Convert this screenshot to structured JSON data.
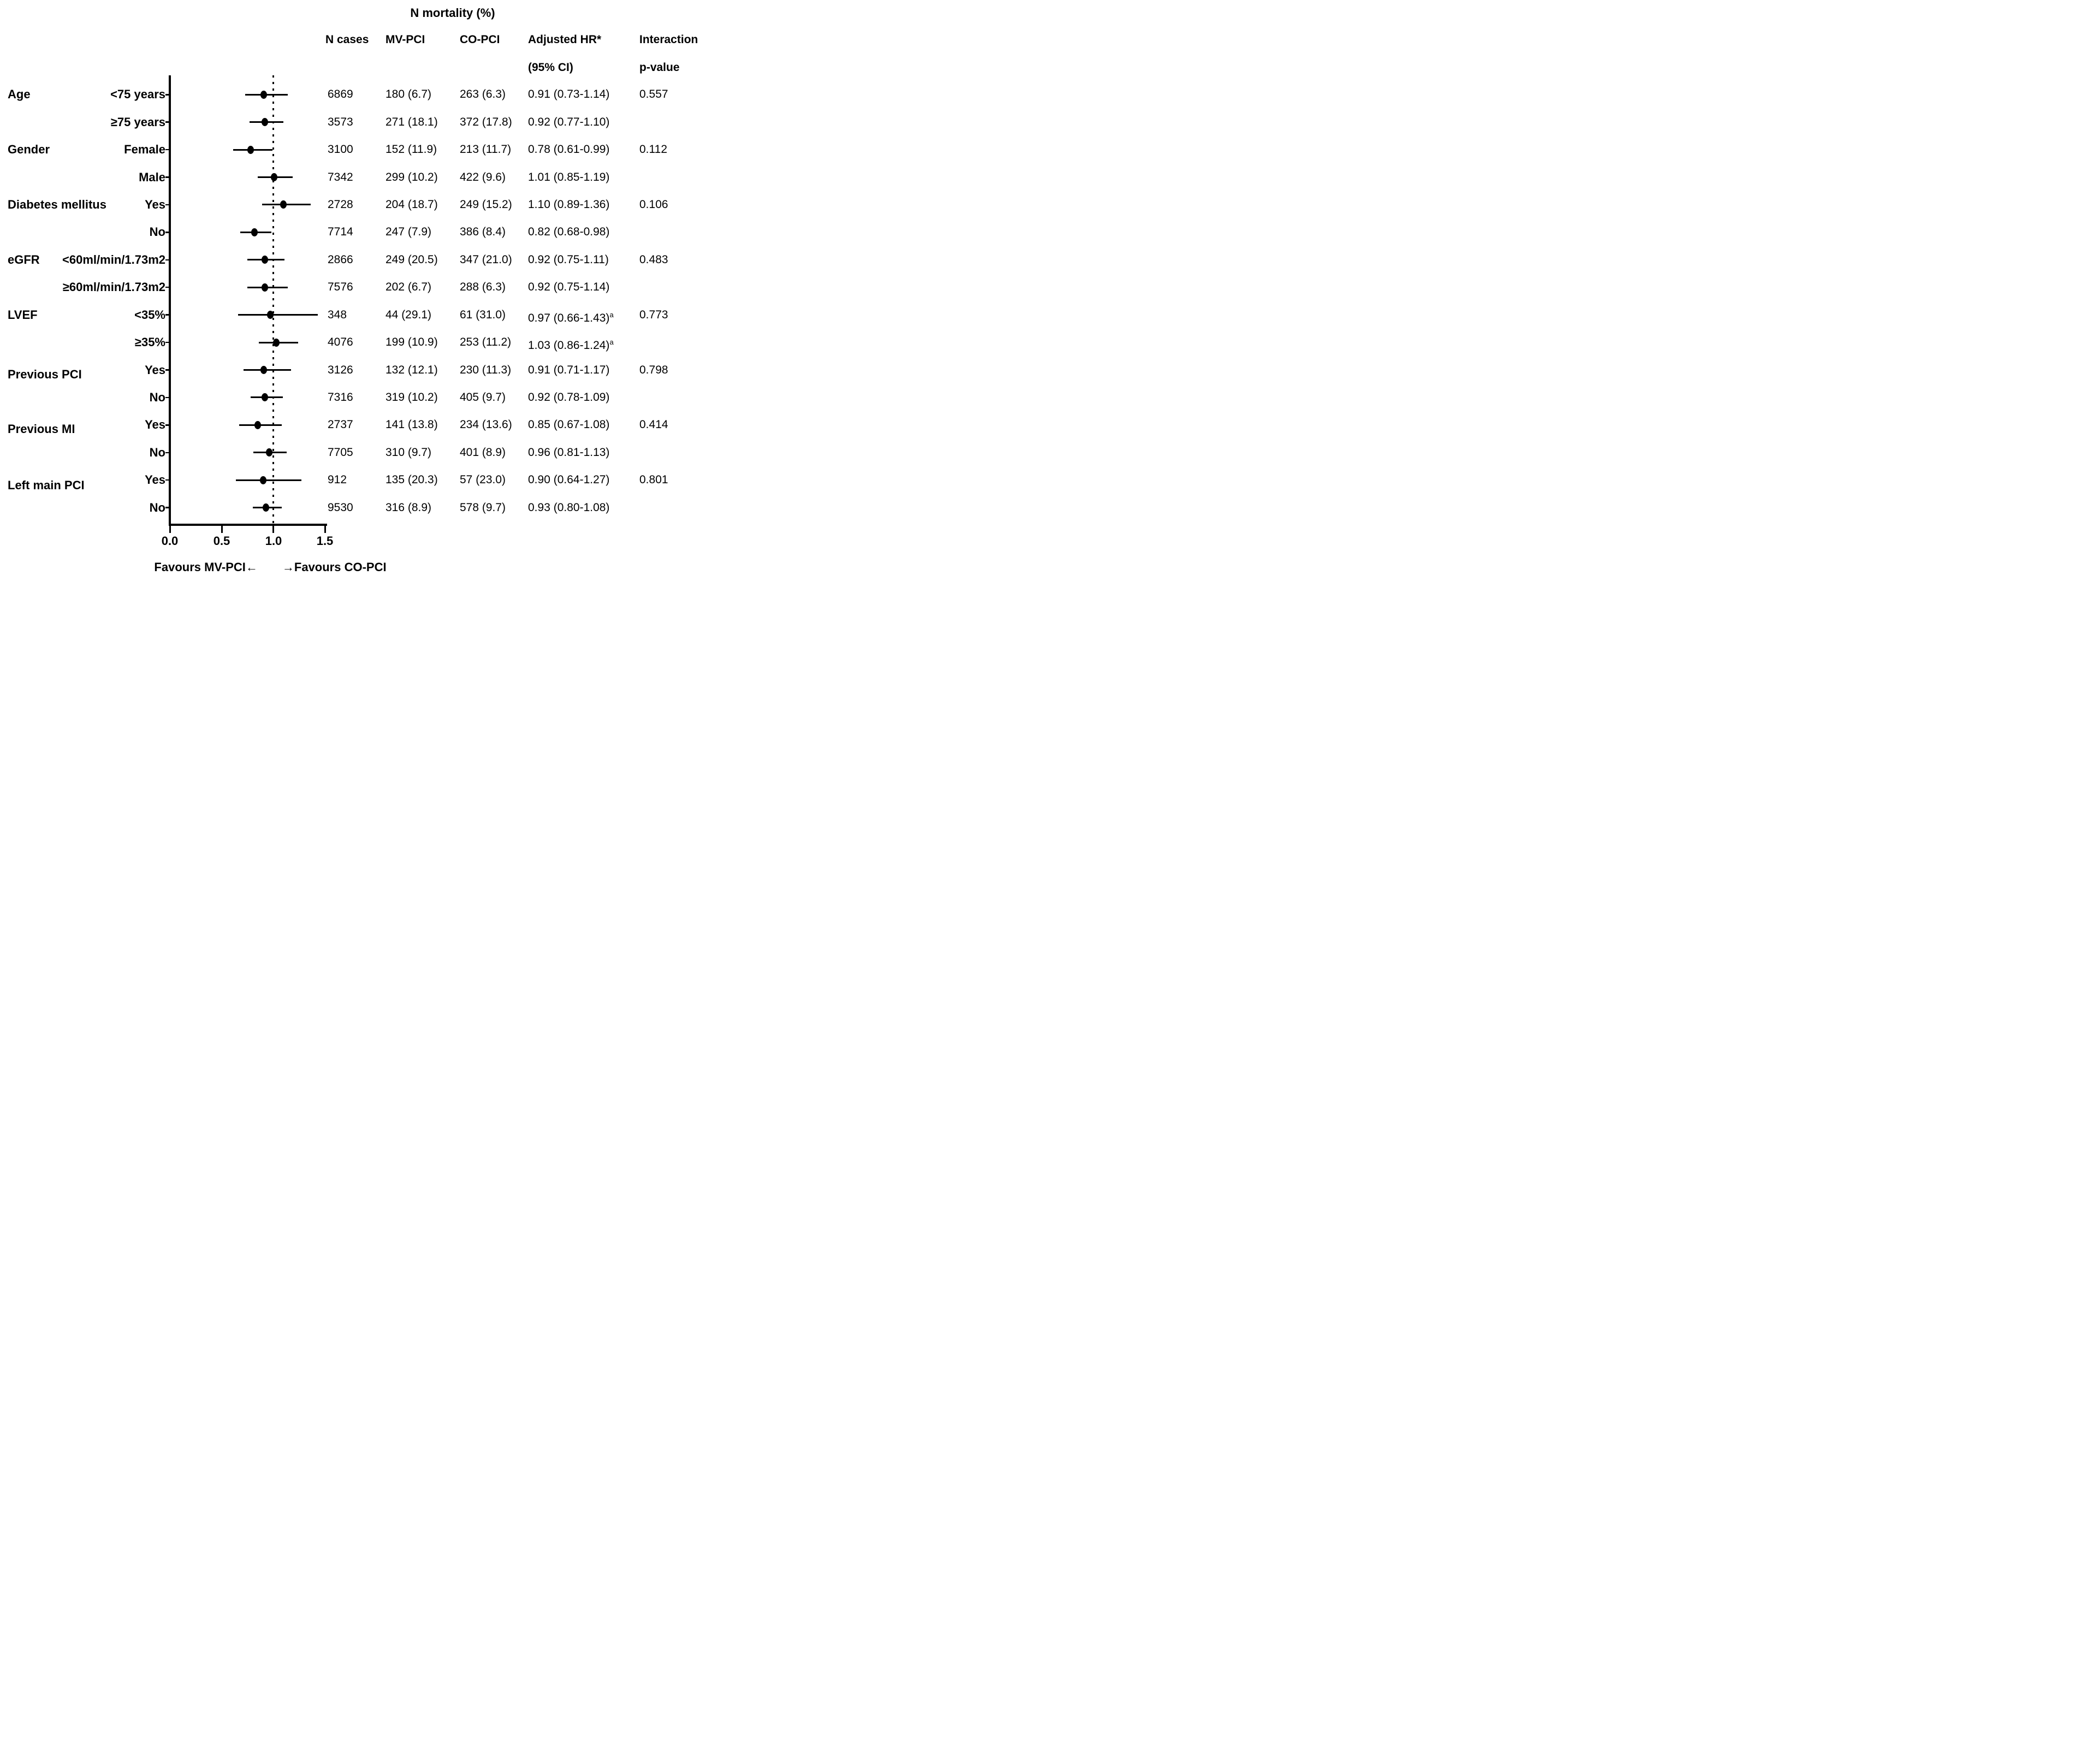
{
  "title": "N mortality (%)",
  "columns": {
    "n_cases": "N cases",
    "mv_pci": "MV-PCI",
    "co_pci": "CO-PCI",
    "adj_hr_line1": "Adjusted HR*",
    "adj_hr_line2": "(95% CI)",
    "interaction_line1": "Interaction",
    "interaction_line2": "p-value"
  },
  "axis": {
    "tick_labels": [
      "0.0",
      "0.5",
      "1.0",
      "1.5"
    ],
    "tick_values": [
      0,
      0.5,
      1.0,
      1.5
    ],
    "xlim": [
      0,
      1.5
    ],
    "reference_value": 1.0
  },
  "footer": {
    "favours_left": "Favours MV-PCI←",
    "favours_right": "→Favours CO-PCI"
  },
  "colors": {
    "foreground": "#000000",
    "background": "#ffffff"
  },
  "chart_data": {
    "type": "scatter",
    "subtype": "forest-plot",
    "title": "N mortality (%)",
    "xlim": [
      0,
      1.5
    ],
    "xticks": [
      0,
      0.5,
      1.0,
      1.5
    ],
    "reference_line": 1.0,
    "grid": false,
    "columns": [
      "N cases",
      "MV-PCI",
      "CO-PCI",
      "Adjusted HR* (95% CI)",
      "Interaction p-value"
    ],
    "rows": [
      {
        "group": "Age",
        "label": "<75 years",
        "hr": 0.91,
        "ci_low": 0.73,
        "ci_high": 1.14,
        "n_cases": "6869",
        "mv_pci": "180 (6.7)",
        "co_pci": "263 (6.3)",
        "hr_text": "0.91 (0.73-1.14)",
        "hr_sup": "",
        "p_value": "0.557"
      },
      {
        "group": "",
        "label": "≥75 years",
        "hr": 0.92,
        "ci_low": 0.77,
        "ci_high": 1.1,
        "n_cases": "3573",
        "mv_pci": "271 (18.1)",
        "co_pci": "372 (17.8)",
        "hr_text": "0.92 (0.77-1.10)",
        "hr_sup": "",
        "p_value": ""
      },
      {
        "group": "Gender",
        "label": "Female",
        "hr": 0.78,
        "ci_low": 0.61,
        "ci_high": 0.99,
        "n_cases": "3100",
        "mv_pci": "152 (11.9)",
        "co_pci": "213 (11.7)",
        "hr_text": "0.78 (0.61-0.99)",
        "hr_sup": "",
        "p_value": "0.112"
      },
      {
        "group": "",
        "label": "Male",
        "hr": 1.01,
        "ci_low": 0.85,
        "ci_high": 1.19,
        "n_cases": "7342",
        "mv_pci": "299 (10.2)",
        "co_pci": "422 (9.6)",
        "hr_text": "1.01 (0.85-1.19)",
        "hr_sup": "",
        "p_value": ""
      },
      {
        "group": "Diabetes mellitus",
        "label": "Yes",
        "hr": 1.1,
        "ci_low": 0.89,
        "ci_high": 1.36,
        "n_cases": "2728",
        "mv_pci": "204 (18.7)",
        "co_pci": "249 (15.2)",
        "hr_text": "1.10 (0.89-1.36)",
        "hr_sup": "",
        "p_value": "0.106"
      },
      {
        "group": "",
        "label": "No",
        "hr": 0.82,
        "ci_low": 0.68,
        "ci_high": 0.98,
        "n_cases": "7714",
        "mv_pci": "247 (7.9)",
        "co_pci": "386 (8.4)",
        "hr_text": "0.82 (0.68-0.98)",
        "hr_sup": "",
        "p_value": ""
      },
      {
        "group": "eGFR",
        "label": "<60ml/min/1.73m2",
        "hr": 0.92,
        "ci_low": 0.75,
        "ci_high": 1.11,
        "n_cases": "2866",
        "mv_pci": "249 (20.5)",
        "co_pci": "347 (21.0)",
        "hr_text": "0.92 (0.75-1.11)",
        "hr_sup": "",
        "p_value": "0.483"
      },
      {
        "group": "",
        "label": "≥60ml/min/1.73m2",
        "hr": 0.92,
        "ci_low": 0.75,
        "ci_high": 1.14,
        "n_cases": "7576",
        "mv_pci": "202 (6.7)",
        "co_pci": "288 (6.3)",
        "hr_text": "0.92 (0.75-1.14)",
        "hr_sup": "",
        "p_value": ""
      },
      {
        "group": "LVEF",
        "label": "<35%",
        "hr": 0.97,
        "ci_low": 0.66,
        "ci_high": 1.43,
        "n_cases": "348",
        "mv_pci": "44 (29.1)",
        "co_pci": "61 (31.0)",
        "hr_text": "0.97 (0.66-1.43)",
        "hr_sup": "a",
        "p_value": "0.773"
      },
      {
        "group": "",
        "label": "≥35%",
        "hr": 1.03,
        "ci_low": 0.86,
        "ci_high": 1.24,
        "n_cases": "4076",
        "mv_pci": "199 (10.9)",
        "co_pci": "253 (11.2)",
        "hr_text": "1.03 (0.86-1.24)",
        "hr_sup": "a",
        "p_value": ""
      },
      {
        "group": "Previous PCI",
        "label": "Yes",
        "hr": 0.91,
        "ci_low": 0.71,
        "ci_high": 1.17,
        "n_cases": "3126",
        "mv_pci": "132 (12.1)",
        "co_pci": "230 (11.3)",
        "hr_text": "0.91 (0.71-1.17)",
        "hr_sup": "",
        "p_value": "0.798"
      },
      {
        "group": "",
        "label": "No",
        "hr": 0.92,
        "ci_low": 0.78,
        "ci_high": 1.09,
        "n_cases": "7316",
        "mv_pci": "319 (10.2)",
        "co_pci": "405 (9.7)",
        "hr_text": "0.92 (0.78-1.09)",
        "hr_sup": "",
        "p_value": ""
      },
      {
        "group": "Previous MI",
        "label": "Yes",
        "hr": 0.85,
        "ci_low": 0.67,
        "ci_high": 1.08,
        "n_cases": "2737",
        "mv_pci": "141 (13.8)",
        "co_pci": "234 (13.6)",
        "hr_text": "0.85 (0.67-1.08)",
        "hr_sup": "",
        "p_value": "0.414"
      },
      {
        "group": "",
        "label": "No",
        "hr": 0.96,
        "ci_low": 0.81,
        "ci_high": 1.13,
        "n_cases": "7705",
        "mv_pci": "310 (9.7)",
        "co_pci": "401 (8.9)",
        "hr_text": "0.96 (0.81-1.13)",
        "hr_sup": "",
        "p_value": ""
      },
      {
        "group": "Left main PCI",
        "label": "Yes",
        "hr": 0.9,
        "ci_low": 0.64,
        "ci_high": 1.27,
        "n_cases": "912",
        "mv_pci": "135 (20.3)",
        "co_pci": "57 (23.0)",
        "hr_text": "0.90 (0.64-1.27)",
        "hr_sup": "",
        "p_value": "0.801"
      },
      {
        "group": "",
        "label": "No",
        "hr": 0.93,
        "ci_low": 0.8,
        "ci_high": 1.08,
        "n_cases": "9530",
        "mv_pci": "316 (8.9)",
        "co_pci": "578 (9.7)",
        "hr_text": "0.93 (0.80-1.08)",
        "hr_sup": "",
        "p_value": ""
      }
    ]
  }
}
